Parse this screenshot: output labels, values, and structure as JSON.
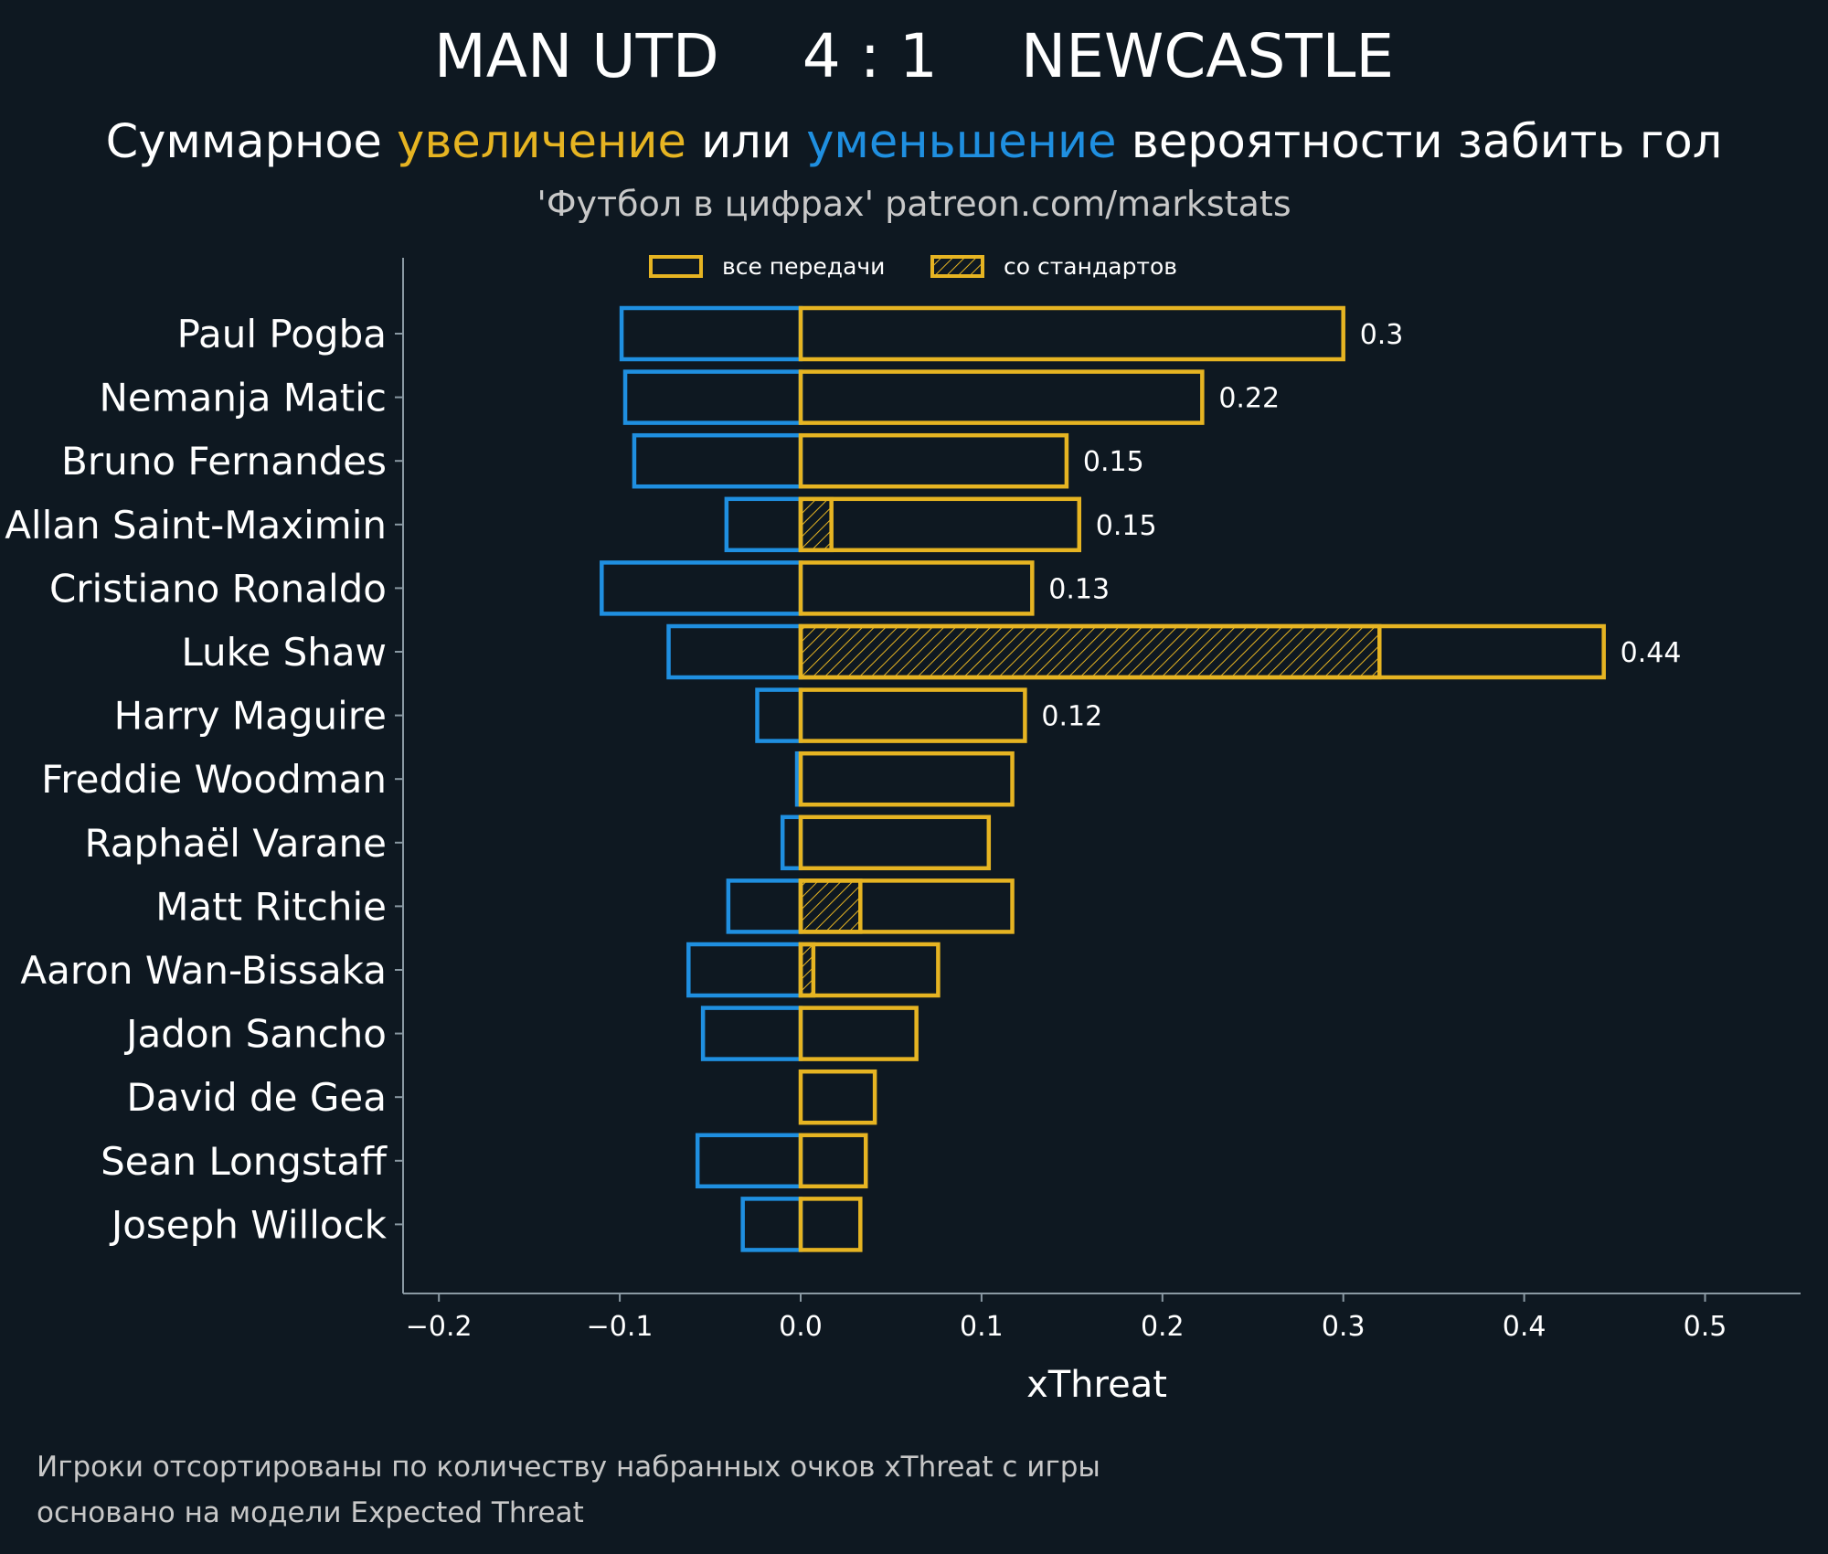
{
  "header": {
    "home_team": "MAN UTD",
    "score": "4 : 1",
    "away_team": "NEWCASTLE",
    "subtitle_part1": "Суммарное ",
    "subtitle_increase": "увеличение",
    "subtitle_part2": " или ",
    "subtitle_decrease": "уменьшение",
    "subtitle_part3": " вероятности забить гол",
    "source": "'Футбол в цифрах' patreon.com/markstats"
  },
  "colors": {
    "background": "#0e1821",
    "increase": "#e6b422",
    "decrease": "#1f8fe0",
    "axis": "#8a99a3",
    "text": "#ffffff",
    "muted_text": "#c8c8c8"
  },
  "footer": {
    "note_line1": "Игроки отсортированы по количеству набранных очков xThreat с игры",
    "note_line2": "основано на модели Expected Threat"
  },
  "chart_data": {
    "type": "bar",
    "orientation": "horizontal",
    "xlabel": "xThreat",
    "xlim": [
      -0.22,
      0.555
    ],
    "xticks": [
      -0.2,
      -0.1,
      0.0,
      0.1,
      0.2,
      0.3,
      0.4,
      0.5
    ],
    "xtick_labels": [
      "−0.2",
      "−0.1",
      "0.0",
      "0.1",
      "0.2",
      "0.3",
      "0.4",
      "0.5"
    ],
    "grid": false,
    "legend_position": "top",
    "legend": [
      {
        "label": "все передачи",
        "style": "outline"
      },
      {
        "label": "со стандартов",
        "style": "hatched"
      }
    ],
    "categories": [
      "Paul Pogba",
      "Nemanja Matic",
      "Bruno Fernandes",
      "Allan Saint-Maximin",
      "Cristiano Ronaldo",
      "Luke Shaw",
      "Harry Maguire",
      "Freddie Woodman",
      "Raphaël Varane",
      "Matt Ritchie",
      "Aaron Wan-Bissaka",
      "Jadon Sancho",
      "David de Gea",
      "Sean Longstaff",
      "Joseph Willock"
    ],
    "series": [
      {
        "name": "все передачи",
        "kind": "increase",
        "values": [
          0.3,
          0.222,
          0.147,
          0.154,
          0.128,
          0.444,
          0.124,
          0.117,
          0.104,
          0.117,
          0.076,
          0.064,
          0.041,
          0.036,
          0.033
        ]
      },
      {
        "name": "",
        "kind": "decrease",
        "values": [
          -0.099,
          -0.097,
          -0.092,
          -0.041,
          -0.11,
          -0.073,
          -0.024,
          -0.002,
          -0.01,
          -0.04,
          -0.062,
          -0.054,
          0.0,
          -0.057,
          -0.032
        ]
      },
      {
        "name": "со стандартов",
        "kind": "set_piece",
        "values": [
          0,
          0,
          0,
          0.017,
          0,
          0.32,
          0,
          0,
          0,
          0.033,
          0.007,
          0,
          0,
          0,
          0
        ]
      }
    ],
    "value_labels": [
      "0.3",
      "0.22",
      "0.15",
      "0.15",
      "0.13",
      "0.44",
      "0.12",
      "",
      "",
      "",
      "",
      "",
      "",
      "",
      ""
    ]
  }
}
